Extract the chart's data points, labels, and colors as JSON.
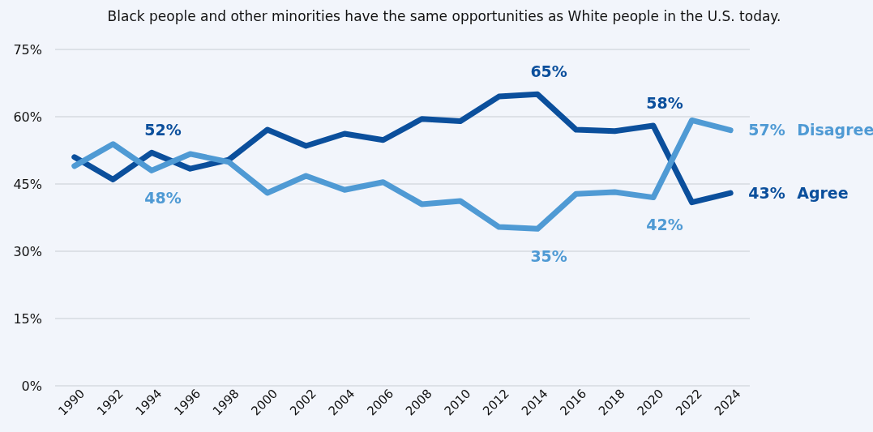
{
  "chart_data": {
    "type": "line",
    "title": "Black people and other minorities have the same opportunities as White people in the U.S. today.",
    "x": [
      1990,
      1992,
      1994,
      1996,
      1998,
      2000,
      2002,
      2004,
      2006,
      2008,
      2010,
      2012,
      2014,
      2016,
      2018,
      2020,
      2022,
      2024
    ],
    "series": [
      {
        "name": "Agree",
        "color": "#0b4f9c",
        "values": [
          51,
          46,
          52,
          48.4,
          50.4,
          57.1,
          53.5,
          56.2,
          54.8,
          59.5,
          59,
          64.5,
          65,
          57.1,
          56.8,
          58,
          40.9,
          43
        ],
        "value_labels": [
          null,
          null,
          "52%",
          null,
          null,
          null,
          null,
          null,
          null,
          null,
          null,
          null,
          "65%",
          null,
          null,
          "58%",
          null,
          "43%"
        ]
      },
      {
        "name": "Disagree",
        "color": "#4f9ad4",
        "values": [
          49,
          53.9,
          48,
          51.7,
          49.9,
          43,
          46.8,
          43.7,
          45.4,
          40.5,
          41.2,
          35.4,
          35,
          42.8,
          43.2,
          42,
          59.2,
          57
        ],
        "value_labels": [
          null,
          null,
          "48%",
          null,
          null,
          null,
          null,
          null,
          null,
          null,
          null,
          null,
          "35%",
          null,
          null,
          "42%",
          null,
          "57%"
        ]
      }
    ],
    "xlim": [
      1989,
      2025
    ],
    "xticks": [
      1990,
      1992,
      1994,
      1996,
      1998,
      2000,
      2002,
      2004,
      2006,
      2008,
      2010,
      2012,
      2014,
      2016,
      2018,
      2020,
      2022,
      2024
    ],
    "ylim": [
      0,
      75
    ],
    "yticks": [
      {
        "value": 0,
        "label": "0%"
      },
      {
        "value": 15,
        "label": "15%"
      },
      {
        "value": 30,
        "label": "30%"
      },
      {
        "value": 45,
        "label": "45%"
      },
      {
        "value": 60,
        "label": "60%"
      },
      {
        "value": 75,
        "label": "75%"
      }
    ],
    "grid": "y",
    "marker": "none",
    "line_style": "solid"
  }
}
